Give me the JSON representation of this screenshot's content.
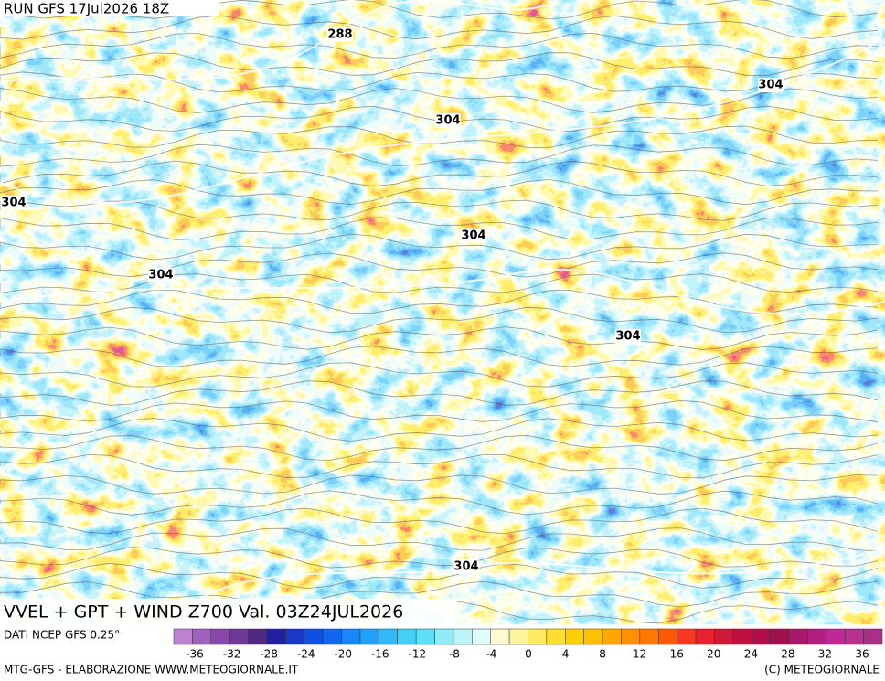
{
  "header": {
    "run": "RUN GFS 17Jul2026 18Z"
  },
  "map": {
    "title": "VVEL + GPT + WIND Z700 Val. 03Z24JUL2026",
    "contour_labels": [
      "288",
      "304",
      "304",
      "304",
      "304",
      "304",
      "304",
      "304"
    ]
  },
  "colorbar": {
    "colors": [
      "#c080d0",
      "#a060c0",
      "#8848a8",
      "#703898",
      "#502880",
      "#2020a0",
      "#1838c8",
      "#1050e0",
      "#1068f0",
      "#1888f8",
      "#20a0f8",
      "#30b8f8",
      "#40d0f8",
      "#60e0f8",
      "#90ecf8",
      "#b8f4f8",
      "#e0fcfc",
      "#fffbd0",
      "#fff4a0",
      "#ffec60",
      "#ffe030",
      "#ffd000",
      "#ffc000",
      "#ffa800",
      "#ff9000",
      "#ff7800",
      "#ff5800",
      "#f83820",
      "#e82030",
      "#d01838",
      "#c01040",
      "#b00c48",
      "#a01050",
      "#a81868",
      "#b02080",
      "#c02898",
      "#b83090",
      "#a83088"
    ],
    "ticks": [
      -36,
      -32,
      -28,
      -24,
      -20,
      -16,
      -12,
      -8,
      -4,
      0,
      4,
      8,
      12,
      16,
      20,
      24,
      28,
      32,
      36
    ]
  },
  "footer": {
    "source": "DATI NCEP GFS 0.25°",
    "credit": "MTG-GFS - ELABORAZIONE WWW.METEOGIORNALE.IT",
    "copyright": "(C) METEOGIORNALE"
  }
}
